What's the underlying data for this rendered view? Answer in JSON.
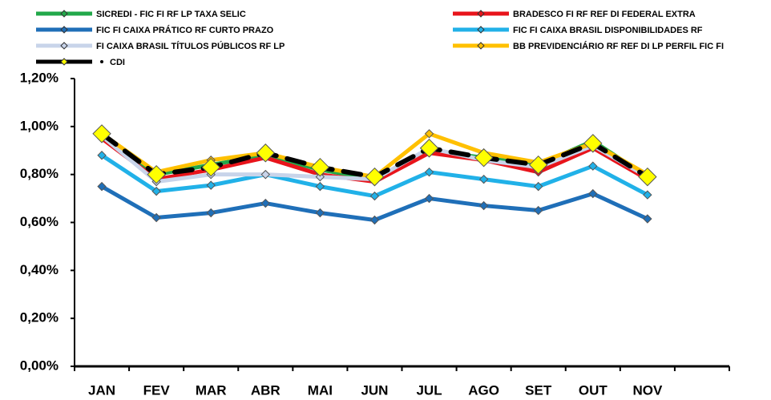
{
  "chart_data": {
    "type": "line",
    "categories": [
      "JAN",
      "FEV",
      "MAR",
      "ABR",
      "MAI",
      "JUN",
      "JUL",
      "AGO",
      "SET",
      "OUT",
      "NOV",
      null
    ],
    "series": [
      {
        "name": "SICREDI - FIC FI RF LP TAXA SELIC",
        "color": "#22a84a",
        "values": [
          0.96,
          0.8,
          0.84,
          0.88,
          0.82,
          0.78,
          0.9,
          0.87,
          0.84,
          0.94,
          0.79,
          null
        ]
      },
      {
        "name": "BRADESCO FI RF REF DI FEDERAL EXTRA",
        "color": "#e8141b",
        "values": [
          0.95,
          0.78,
          0.82,
          0.87,
          0.8,
          0.77,
          0.89,
          0.86,
          0.81,
          0.91,
          0.78,
          null
        ]
      },
      {
        "name": "FIC FI CAIXA PRÁTICO RF CURTO PRAZO",
        "color": "#1f6fb8",
        "values": [
          0.75,
          0.62,
          0.64,
          0.68,
          0.64,
          0.61,
          0.7,
          0.67,
          0.65,
          0.72,
          0.615,
          null
        ]
      },
      {
        "name": "FIC FI CAIXA BRASIL DISPONIBILIDADES RF",
        "color": "#21b1e8",
        "values": [
          0.88,
          0.73,
          0.755,
          0.8,
          0.75,
          0.71,
          0.81,
          0.78,
          0.75,
          0.835,
          0.715,
          null
        ]
      },
      {
        "name": "FI CAIXA BRASIL TÍTULOS PÚBLICOS RF LP",
        "color": "#c8d4ea",
        "values": [
          0.96,
          0.77,
          0.8,
          0.8,
          0.79,
          0.78,
          0.91,
          0.86,
          0.83,
          0.92,
          0.79,
          null
        ]
      },
      {
        "name": "BB PREVIDENCIÁRIO RF REF DI LP PERFIL FIC FI",
        "color": "#ffc000",
        "values": [
          0.97,
          0.81,
          0.86,
          0.89,
          0.83,
          0.79,
          0.97,
          0.89,
          0.85,
          0.93,
          0.8,
          null
        ]
      },
      {
        "name": "CDI",
        "color": "#000000",
        "marker_color": "#ffff00",
        "line_style": "dotted",
        "values": [
          0.97,
          0.8,
          0.83,
          0.89,
          0.83,
          0.79,
          0.91,
          0.87,
          0.84,
          0.93,
          0.79,
          null
        ]
      }
    ],
    "ylim": [
      0,
      1.2
    ],
    "yticks": [
      {
        "value": 0,
        "label": "0,00%"
      },
      {
        "value": 0.2,
        "label": "0,20%"
      },
      {
        "value": 0.4,
        "label": "0,40%"
      },
      {
        "value": 0.6,
        "label": "0,60%"
      },
      {
        "value": 0.8,
        "label": "0,80%"
      },
      {
        "value": 1.0,
        "label": "1,00%"
      },
      {
        "value": 1.2,
        "label": "1,20%"
      }
    ],
    "grid": false
  }
}
